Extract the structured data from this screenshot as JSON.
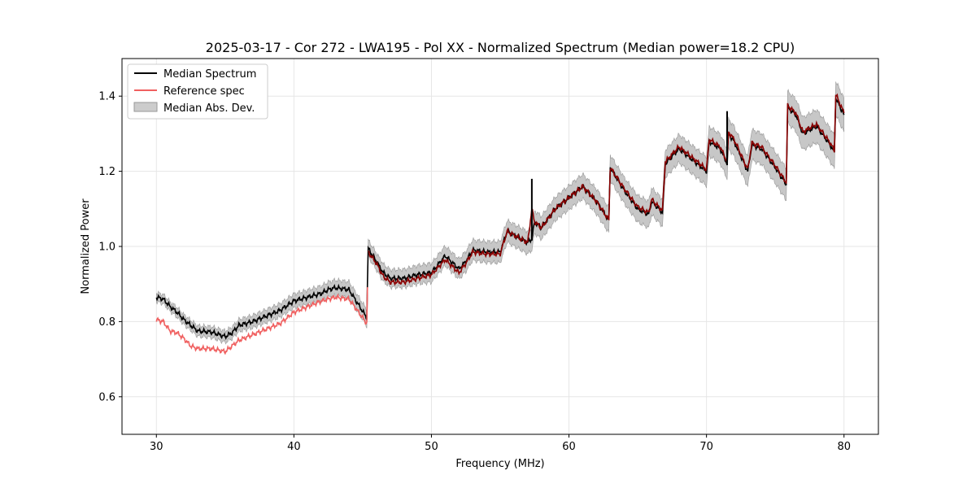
{
  "chart_data": {
    "type": "line",
    "title": "2025-03-17 - Cor 272 - LWA195 - Pol XX - Normalized Spectrum (Median power=18.2 CPU)",
    "xlabel": "Frequency (MHz)",
    "ylabel": "Normalized Power",
    "xlim": [
      27.5,
      82.5
    ],
    "ylim": [
      0.5,
      1.5
    ],
    "xticks": [
      30,
      40,
      50,
      60,
      70,
      80
    ],
    "yticks": [
      0.6,
      0.8,
      1.0,
      1.2,
      1.4
    ],
    "ytick_labels": [
      "0.6",
      "0.8",
      "1.0",
      "1.2",
      "1.4"
    ],
    "grid": true,
    "legend_position": "top-left",
    "legend": [
      "Median Spectrum",
      "Reference spec",
      "Median Abs. Dev."
    ],
    "colors": {
      "median": "#000000",
      "reference": "#f06060",
      "overlap": "#8b0000",
      "band_fill": "#bdbdbd",
      "band_edge": "#999999"
    },
    "series": [
      {
        "name": "Median Spectrum",
        "x": [
          30.0,
          30.5,
          31.0,
          31.5,
          32.0,
          32.5,
          33.0,
          34.0,
          35.0,
          35.5,
          36.0,
          37.0,
          38.0,
          39.0,
          40.0,
          41.0,
          42.0,
          42.5,
          43.0,
          44.0,
          45.3,
          45.4,
          46.0,
          46.5,
          47.0,
          48.0,
          49.0,
          50.0,
          51.0,
          52.0,
          52.5,
          53.0,
          54.0,
          55.0,
          55.5,
          56.0,
          57.0,
          57.3,
          57.5,
          58.0,
          59.0,
          60.0,
          61.0,
          62.0,
          62.9,
          63.0,
          64.0,
          65.0,
          65.8,
          66.0,
          66.8,
          67.0,
          68.0,
          69.0,
          70.0,
          70.2,
          71.0,
          71.5,
          71.6,
          72.0,
          73.0,
          73.3,
          74.0,
          75.0,
          75.8,
          75.9,
          76.5,
          77.0,
          78.0,
          79.0,
          79.3,
          79.4,
          80.0
        ],
        "values": [
          0.865,
          0.86,
          0.84,
          0.825,
          0.805,
          0.79,
          0.775,
          0.772,
          0.76,
          0.77,
          0.79,
          0.8,
          0.815,
          0.83,
          0.855,
          0.865,
          0.875,
          0.885,
          0.89,
          0.885,
          0.81,
          0.995,
          0.96,
          0.93,
          0.915,
          0.915,
          0.925,
          0.93,
          0.975,
          0.94,
          0.96,
          0.99,
          0.985,
          0.985,
          1.04,
          1.03,
          1.01,
          1.02,
          1.065,
          1.05,
          1.1,
          1.13,
          1.16,
          1.12,
          1.07,
          1.21,
          1.15,
          1.1,
          1.085,
          1.12,
          1.09,
          1.22,
          1.26,
          1.23,
          1.2,
          1.28,
          1.26,
          1.22,
          1.3,
          1.28,
          1.2,
          1.27,
          1.26,
          1.21,
          1.165,
          1.37,
          1.35,
          1.3,
          1.32,
          1.27,
          1.25,
          1.395,
          1.35
        ],
        "spikes": [
          {
            "x": 57.3,
            "y": 1.18
          },
          {
            "x": 71.5,
            "y": 1.36
          }
        ]
      },
      {
        "name": "Reference spec",
        "x": [
          30.0,
          30.5,
          31.0,
          31.5,
          32.0,
          32.5,
          33.0,
          34.0,
          35.0,
          35.5,
          36.0,
          37.0,
          38.0,
          39.0,
          40.0,
          41.0,
          42.0,
          42.5,
          43.0,
          44.0,
          45.3,
          45.4,
          46.0,
          46.5,
          47.0,
          48.0,
          49.0,
          50.0,
          51.0,
          52.0,
          52.5,
          53.0,
          54.0,
          55.0,
          55.5,
          56.0,
          57.0,
          57.3,
          57.5,
          58.0,
          59.0,
          60.0,
          61.0,
          62.0,
          62.9,
          63.0,
          64.0,
          65.0,
          65.8,
          66.0,
          66.8,
          67.0,
          68.0,
          69.0,
          70.0,
          70.2,
          71.0,
          71.5,
          71.6,
          72.0,
          73.0,
          73.3,
          74.0,
          75.0,
          75.8,
          75.9,
          76.5,
          77.0,
          78.0,
          79.0,
          79.3,
          79.4,
          80.0
        ],
        "values": [
          0.805,
          0.8,
          0.775,
          0.77,
          0.755,
          0.735,
          0.728,
          0.728,
          0.72,
          0.735,
          0.75,
          0.765,
          0.78,
          0.795,
          0.825,
          0.84,
          0.855,
          0.86,
          0.865,
          0.86,
          0.795,
          0.985,
          0.955,
          0.92,
          0.905,
          0.905,
          0.915,
          0.925,
          0.965,
          0.93,
          0.955,
          0.985,
          0.98,
          0.98,
          1.04,
          1.03,
          1.01,
          1.1,
          1.065,
          1.05,
          1.1,
          1.13,
          1.16,
          1.12,
          1.07,
          1.21,
          1.155,
          1.105,
          1.09,
          1.125,
          1.095,
          1.225,
          1.265,
          1.235,
          1.205,
          1.285,
          1.265,
          1.225,
          1.305,
          1.285,
          1.205,
          1.275,
          1.265,
          1.215,
          1.17,
          1.375,
          1.355,
          1.305,
          1.325,
          1.275,
          1.255,
          1.405,
          1.355
        ]
      }
    ],
    "band": {
      "name": "Median Abs. Dev.",
      "halfwidth_low_freq": 0.012,
      "halfwidth_high_freq": 0.045
    }
  }
}
